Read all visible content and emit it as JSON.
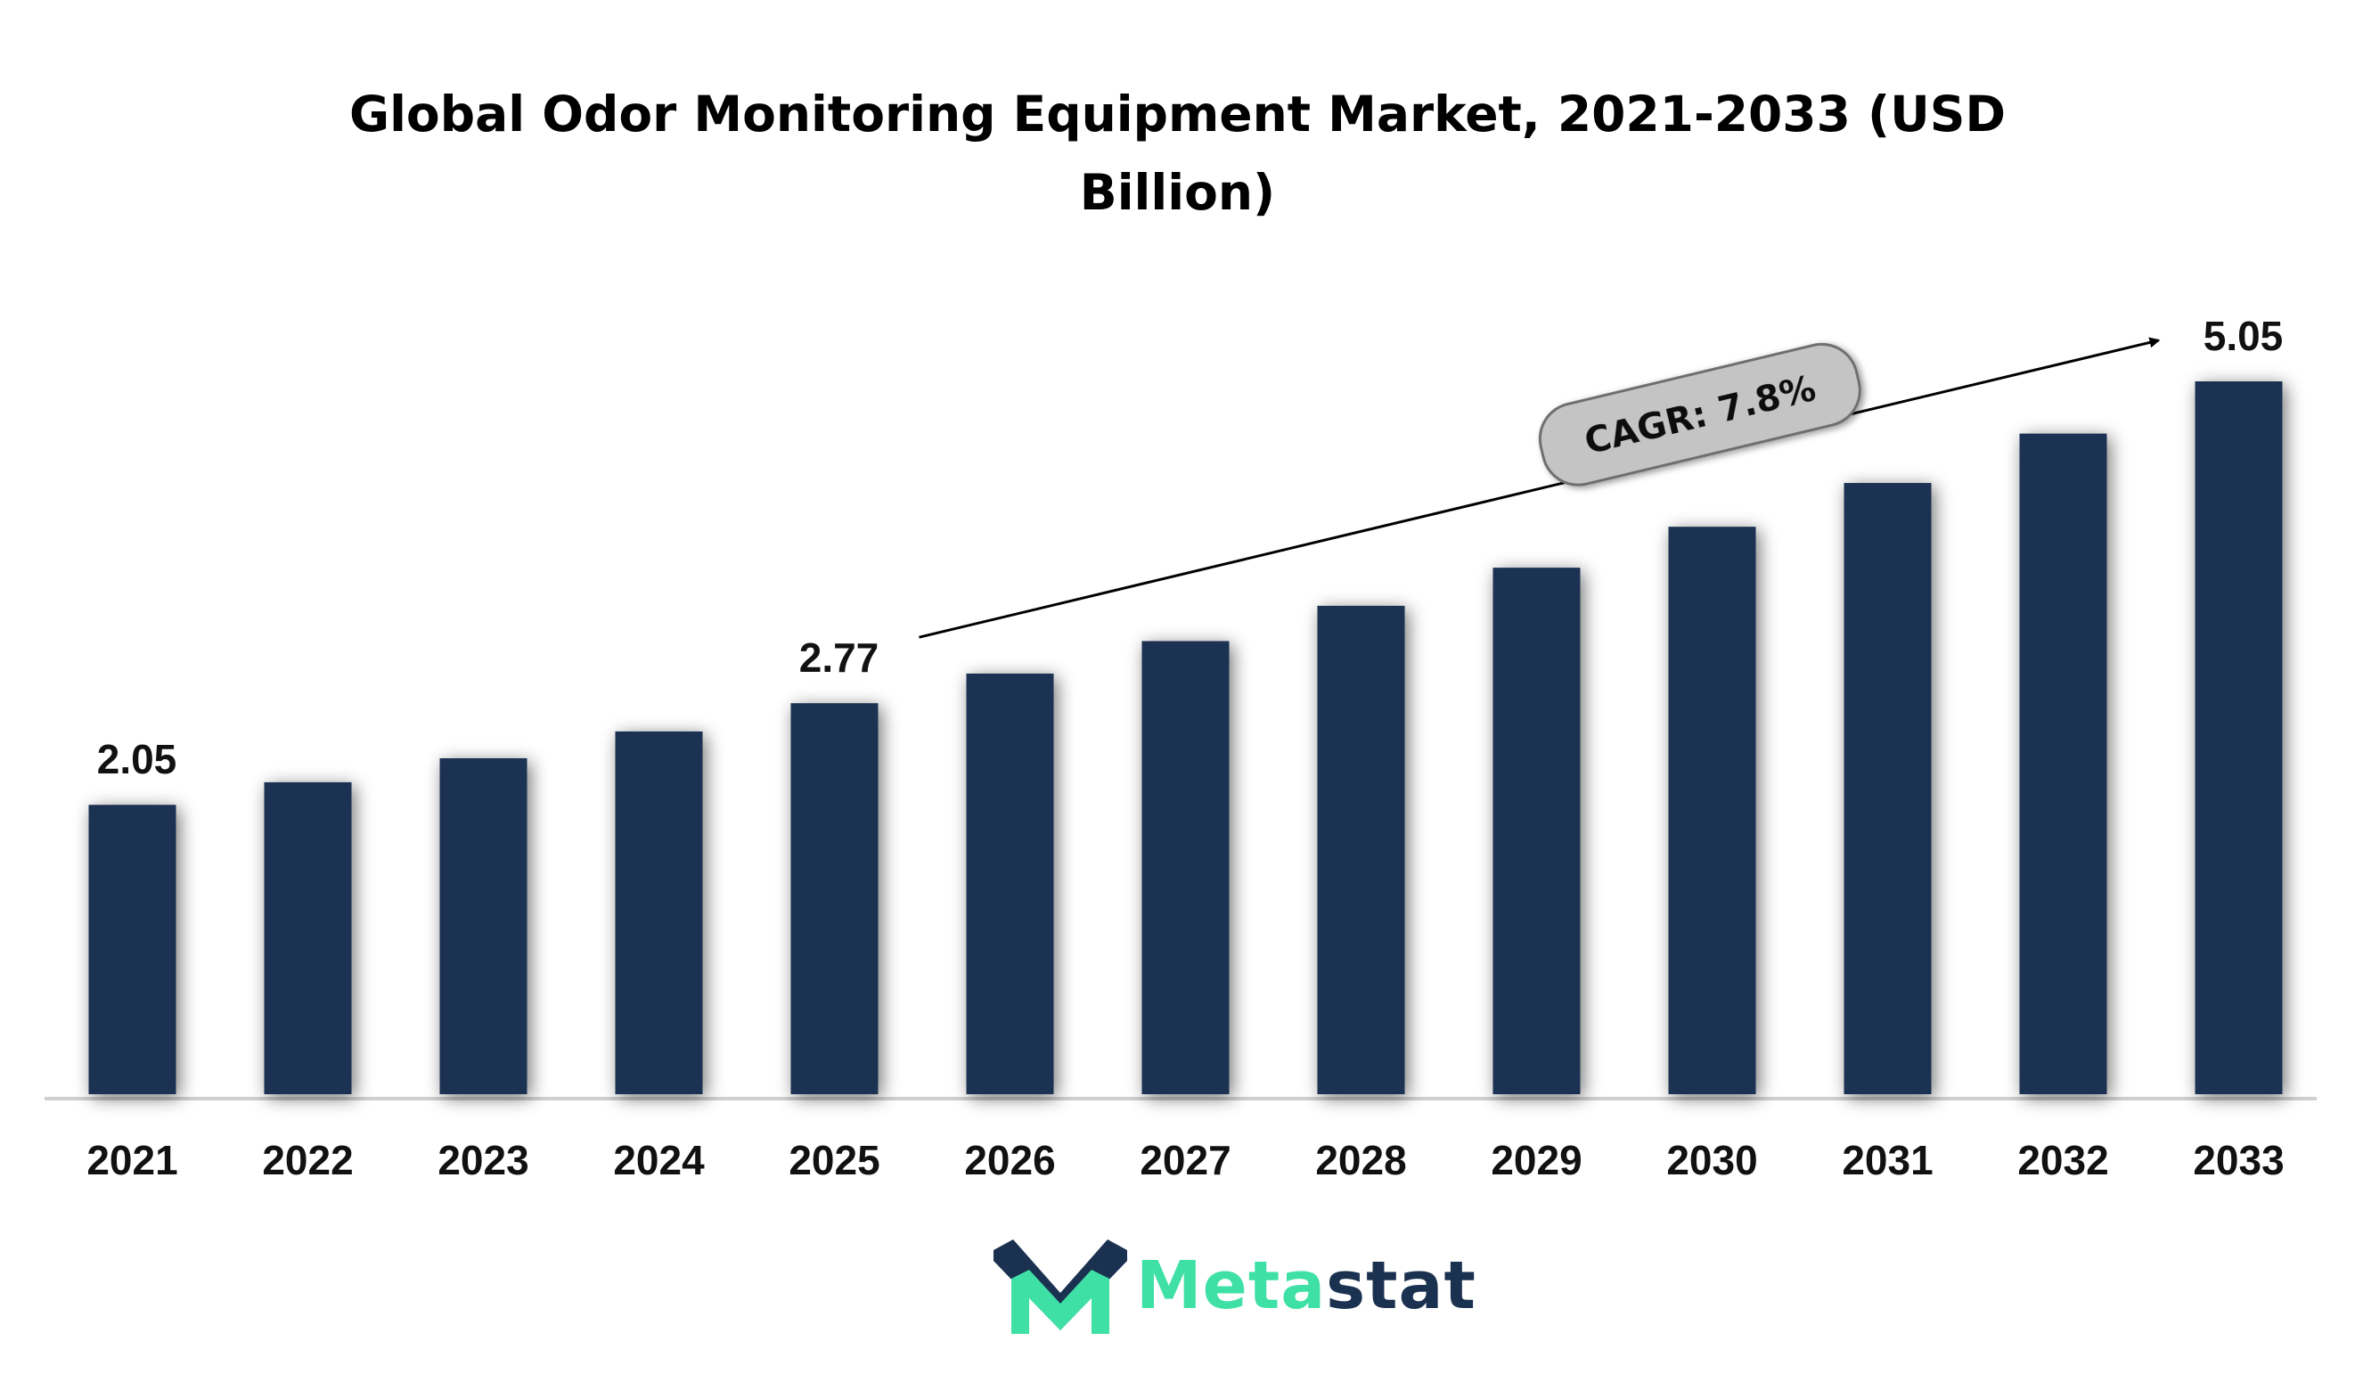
{
  "chart_data": {
    "type": "bar",
    "title_lines": [
      "Global Odor Monitoring Equipment Market, 2021-2033 (USD",
      "Billion)"
    ],
    "categories": [
      "2021",
      "2022",
      "2023",
      "2024",
      "2025",
      "2026",
      "2027",
      "2028",
      "2029",
      "2030",
      "2031",
      "2032",
      "2033"
    ],
    "values": [
      2.05,
      2.21,
      2.38,
      2.57,
      2.77,
      2.98,
      3.21,
      3.46,
      3.73,
      4.02,
      4.33,
      4.68,
      5.05
    ],
    "labeled_values": {
      "2021": "2.05",
      "2025": "2.77",
      "2033": "5.05"
    },
    "ylim": [
      0,
      5.05
    ],
    "grid": false,
    "bar_color": "#1a3352",
    "annotation": {
      "text": "CAGR: 7.8%",
      "from_category": "2025",
      "to_category": "2033"
    }
  },
  "logo": {
    "part1": "Meta",
    "part2": "stat",
    "accent": "#3fe0a6",
    "dark": "#1a3150"
  }
}
